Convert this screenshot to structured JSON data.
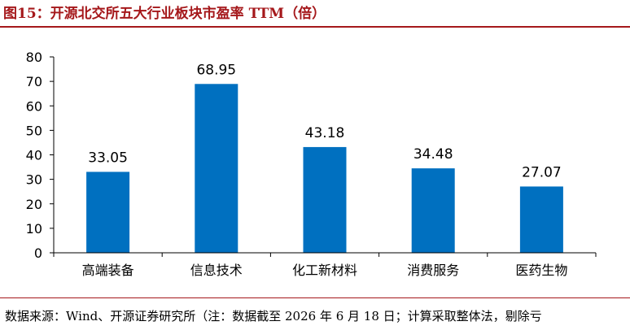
{
  "header": {
    "title": "图15：开源北交所五大行业板块市盈率 TTM（倍）"
  },
  "footer": {
    "source": "数据来源：Wind、开源证券研究所（注：数据截至 2026 年 6 月 18 日；计算采取整体法，剔除亏"
  },
  "chart_data": {
    "type": "bar",
    "categories": [
      "高端装备",
      "信息技术",
      "化工新材料",
      "消费服务",
      "医药生物"
    ],
    "values": [
      33.05,
      68.95,
      43.18,
      34.48,
      27.07
    ],
    "data_labels": [
      "33.05",
      "68.95",
      "43.18",
      "34.48",
      "27.07"
    ],
    "ylim": [
      0,
      80
    ],
    "yticks": [
      0,
      10,
      20,
      30,
      40,
      50,
      60,
      70,
      80
    ],
    "grid": false,
    "legend": "none",
    "colors": {
      "bar": "#0070c0",
      "axis": "#000000",
      "text": "#000000"
    }
  }
}
